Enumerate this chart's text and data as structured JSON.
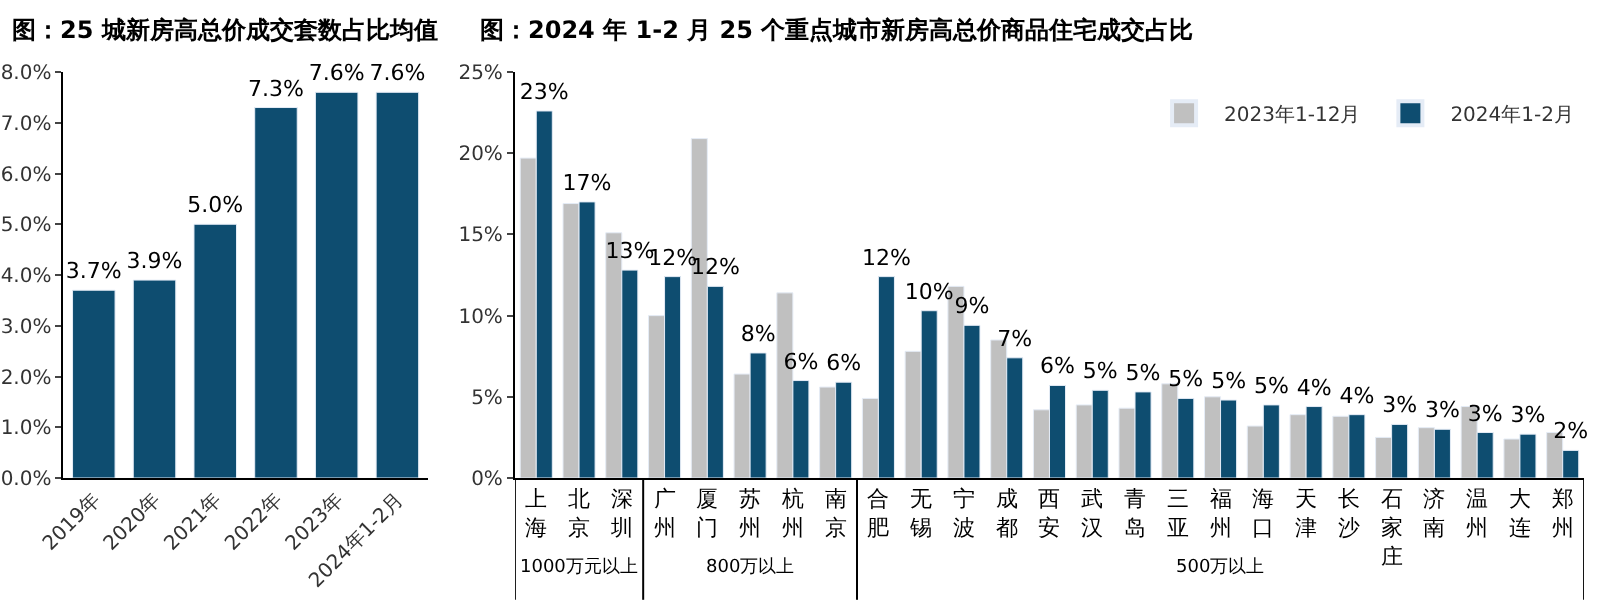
{
  "chart_data": [
    {
      "type": "bar",
      "title": "图：25 城新房高总价成交套数占比均值",
      "categories": [
        "2019年",
        "2020年",
        "2021年",
        "2022年",
        "2023年",
        "2024年1-2月"
      ],
      "values": [
        3.7,
        3.9,
        5.0,
        7.3,
        7.6,
        7.6
      ],
      "value_labels": [
        "3.7%",
        "3.9%",
        "5.0%",
        "7.3%",
        "7.6%",
        "7.6%"
      ],
      "color": "#0e4d70",
      "ylim": [
        0,
        8
      ],
      "yticks": [
        {
          "value": 0,
          "label": "0.0%"
        },
        {
          "value": 1,
          "label": "1.0%"
        },
        {
          "value": 2,
          "label": "2.0%"
        },
        {
          "value": 3,
          "label": "3.0%"
        },
        {
          "value": 4,
          "label": "4.0%"
        },
        {
          "value": 5,
          "label": "5.0%"
        },
        {
          "value": 6,
          "label": "6.0%"
        },
        {
          "value": 7,
          "label": "7.0%"
        },
        {
          "value": 8,
          "label": "8.0%"
        }
      ],
      "grid": false,
      "legend": false
    },
    {
      "type": "bar",
      "title": "图：2024 年 1-2 月 25 个重点城市新房高总价商品住宅成交占比",
      "categories": [
        "上海",
        "北京",
        "深圳",
        "广州",
        "厦门",
        "苏州",
        "杭州",
        "南京",
        "合肥",
        "无锡",
        "宁波",
        "成都",
        "西安",
        "武汉",
        "青岛",
        "三亚",
        "福州",
        "海口",
        "天津",
        "长沙",
        "石家庄",
        "济南",
        "温州",
        "大连",
        "郑州"
      ],
      "series": [
        {
          "name": "2023年1-12月",
          "color": "#c0c0c0",
          "values": [
            19.7,
            16.9,
            15.1,
            10.0,
            20.9,
            6.4,
            11.4,
            5.6,
            4.9,
            7.8,
            11.8,
            8.5,
            4.2,
            4.5,
            4.3,
            5.8,
            5.0,
            3.2,
            3.9,
            3.8,
            2.5,
            3.1,
            4.4,
            2.4,
            2.8
          ]
        },
        {
          "name": "2024年1-2月",
          "color": "#0e4d70",
          "values": [
            22.6,
            17.0,
            12.8,
            12.4,
            11.8,
            7.7,
            6.0,
            5.9,
            12.4,
            10.3,
            9.4,
            7.4,
            5.7,
            5.4,
            5.3,
            4.9,
            4.8,
            4.5,
            4.4,
            3.9,
            3.3,
            3.0,
            2.8,
            2.7,
            1.7
          ],
          "value_labels": [
            "23%",
            "17%",
            "13%",
            "12%",
            "12%",
            "8%",
            "6%",
            "6%",
            "12%",
            "10%",
            "9%",
            "7%",
            "6%",
            "5%",
            "5%",
            "5%",
            "5%",
            "5%",
            "4%",
            "4%",
            "3%",
            "3%",
            "3%",
            "3%",
            "2%"
          ]
        }
      ],
      "ylim": [
        0,
        25
      ],
      "yticks": [
        {
          "value": 0,
          "label": "0%"
        },
        {
          "value": 5,
          "label": "5%"
        },
        {
          "value": 10,
          "label": "10%"
        },
        {
          "value": 15,
          "label": "15%"
        },
        {
          "value": 20,
          "label": "20%"
        },
        {
          "value": 25,
          "label": "25%"
        }
      ],
      "annotations": [
        "1000万元以上",
        "800万以上",
        "500万以上"
      ],
      "grid": false,
      "legend": "top right"
    }
  ]
}
